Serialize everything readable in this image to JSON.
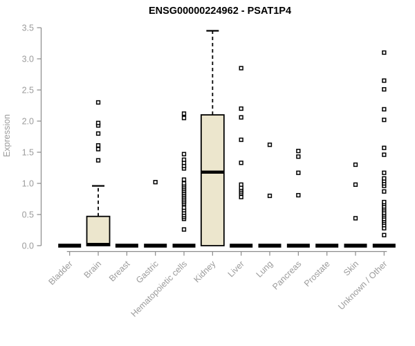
{
  "chart_data": {
    "type": "boxplot",
    "title": "ENSG00000224962 - PSAT1P4",
    "ylabel": "Expression",
    "xlabel": "",
    "ylim": [
      0,
      3.5
    ],
    "yticks": [
      0.0,
      0.5,
      1.0,
      1.5,
      2.0,
      2.5,
      3.0,
      3.5
    ],
    "grid": false,
    "legend": "none",
    "categories": [
      "Bladder",
      "Brain",
      "Breast",
      "Gastric",
      "Hematopoietic cells",
      "Kidney",
      "Liver",
      "Lung",
      "Pancreas",
      "Prostate",
      "Skin",
      "Unknown / Other"
    ],
    "boxes": [
      {
        "category": "Bladder",
        "q1": 0,
        "median": 0,
        "q3": 0,
        "whisker_low": 0,
        "whisker_high": 0,
        "outliers": []
      },
      {
        "category": "Brain",
        "q1": 0,
        "median": 0.02,
        "q3": 0.47,
        "whisker_low": 0,
        "whisker_high": 0.96,
        "outliers": [
          1.37,
          1.55,
          1.61,
          1.8,
          1.93,
          1.97,
          2.3
        ]
      },
      {
        "category": "Breast",
        "q1": 0,
        "median": 0,
        "q3": 0,
        "whisker_low": 0,
        "whisker_high": 0,
        "outliers": []
      },
      {
        "category": "Gastric",
        "q1": 0,
        "median": 0,
        "q3": 0,
        "whisker_low": 0,
        "whisker_high": 0,
        "outliers": [
          1.02
        ]
      },
      {
        "category": "Hematopoietic cells",
        "q1": 0,
        "median": 0,
        "q3": 0,
        "whisker_low": 0,
        "whisker_high": 0,
        "outliers": [
          0.26,
          0.43,
          0.46,
          0.49,
          0.53,
          0.57,
          0.61,
          0.67,
          0.7,
          0.73,
          0.76,
          0.79,
          0.82,
          0.85,
          0.88,
          0.91,
          0.94,
          0.97,
          1.0,
          1.06,
          1.24,
          1.28,
          1.33,
          1.38,
          1.47,
          2.05,
          2.12
        ]
      },
      {
        "category": "Kidney",
        "q1": 0,
        "median": 1.18,
        "q3": 2.1,
        "whisker_low": 0,
        "whisker_high": 3.45,
        "outliers": []
      },
      {
        "category": "Liver",
        "q1": 0,
        "median": 0,
        "q3": 0,
        "whisker_low": 0,
        "whisker_high": 0,
        "outliers": [
          0.78,
          0.84,
          0.87,
          0.9,
          0.93,
          0.98,
          1.33,
          1.7,
          2.06,
          2.2,
          2.85
        ]
      },
      {
        "category": "Lung",
        "q1": 0,
        "median": 0,
        "q3": 0,
        "whisker_low": 0,
        "whisker_high": 0,
        "outliers": [
          0.8,
          1.62
        ]
      },
      {
        "category": "Pancreas",
        "q1": 0,
        "median": 0,
        "q3": 0,
        "whisker_low": 0,
        "whisker_high": 0,
        "outliers": [
          0.81,
          1.17,
          1.43,
          1.52
        ]
      },
      {
        "category": "Prostate",
        "q1": 0,
        "median": 0,
        "q3": 0,
        "whisker_low": 0,
        "whisker_high": 0,
        "outliers": []
      },
      {
        "category": "Skin",
        "q1": 0,
        "median": 0,
        "q3": 0,
        "whisker_low": 0,
        "whisker_high": 0,
        "outliers": [
          0.44,
          0.98,
          1.3
        ]
      },
      {
        "category": "Unknown / Other",
        "q1": 0,
        "median": 0,
        "q3": 0,
        "whisker_low": 0,
        "whisker_high": 0,
        "outliers": [
          0.17,
          0.28,
          0.33,
          0.37,
          0.4,
          0.43,
          0.47,
          0.5,
          0.53,
          0.57,
          0.6,
          0.63,
          0.67,
          0.7,
          0.87,
          0.96,
          1.0,
          1.04,
          1.08,
          1.17,
          1.46,
          1.57,
          2.02,
          2.19,
          2.51,
          2.65,
          3.1
        ]
      }
    ],
    "colors": {
      "box_fill": "#ece6cd",
      "box_border": "#000000",
      "median": "#000000",
      "whisker": "#000000",
      "outlier_fill": "#ffffff",
      "outlier_border": "#000000",
      "axis": "#8a8a8a",
      "tick_label": "#9b9b9b",
      "title": "#000000",
      "background": "#ffffff"
    }
  }
}
